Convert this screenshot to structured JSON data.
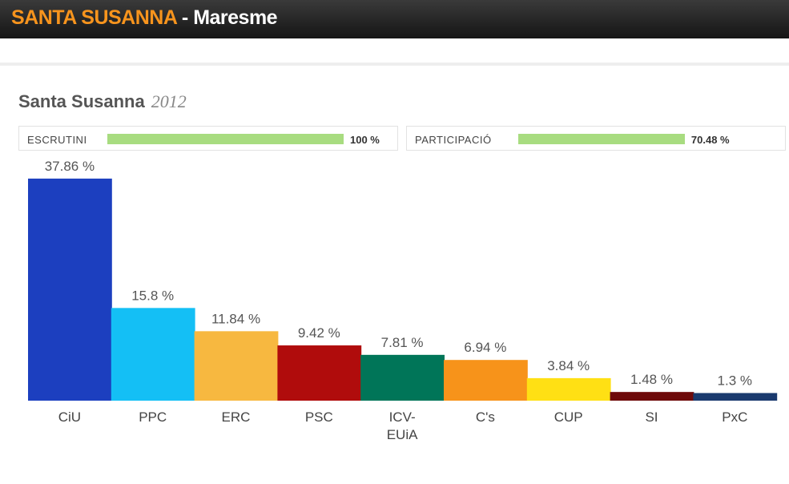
{
  "header": {
    "town": "SANTA SUSANNA",
    "separator": " - ",
    "region": "Maresme"
  },
  "panel": {
    "title": "Santa Susanna",
    "year": "2012",
    "escrutini": {
      "label": "ESCRUTINI",
      "value": 100,
      "value_label": "100 %"
    },
    "participacio": {
      "label": "PARTICIPACIÓ",
      "value": 70.48,
      "value_label": "70.48 %"
    }
  },
  "chart_data": {
    "type": "bar",
    "categories": [
      "CiU",
      "PPC",
      "ERC",
      "PSC",
      "ICV-EUiA",
      "C's",
      "CUP",
      "SI",
      "PxC"
    ],
    "values": [
      37.86,
      15.8,
      11.84,
      9.42,
      7.81,
      6.94,
      3.84,
      1.48,
      1.3
    ],
    "value_labels": [
      "37.86 %",
      "15.8 %",
      "11.84 %",
      "9.42 %",
      "7.81 %",
      "6.94 %",
      "3.84 %",
      "1.48 %",
      "1.3 %"
    ],
    "colors": [
      "#1c3fbf",
      "#14bff5",
      "#f7b840",
      "#b00c0c",
      "#007558",
      "#f7931a",
      "#ffe014",
      "#6e0a0a",
      "#1a3a6e"
    ]
  }
}
